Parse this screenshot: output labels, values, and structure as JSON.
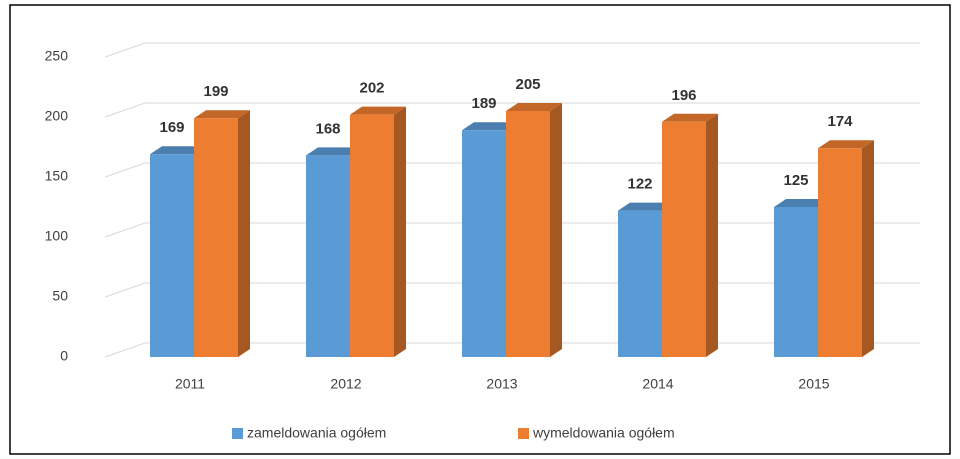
{
  "chart_data": {
    "type": "bar",
    "categories": [
      "2011",
      "2012",
      "2013",
      "2014",
      "2015"
    ],
    "series": [
      {
        "name": "zameldowania ogółem",
        "color": "#5b9bd5",
        "values": [
          169,
          168,
          189,
          122,
          125
        ]
      },
      {
        "name": "wymeldowania ogółem",
        "color": "#ed7d31",
        "values": [
          199,
          202,
          205,
          196,
          174
        ]
      }
    ],
    "ylim": [
      0,
      250
    ],
    "yticks": [
      0,
      50,
      100,
      150,
      200,
      250
    ],
    "grid": true,
    "legend": "bottom"
  }
}
